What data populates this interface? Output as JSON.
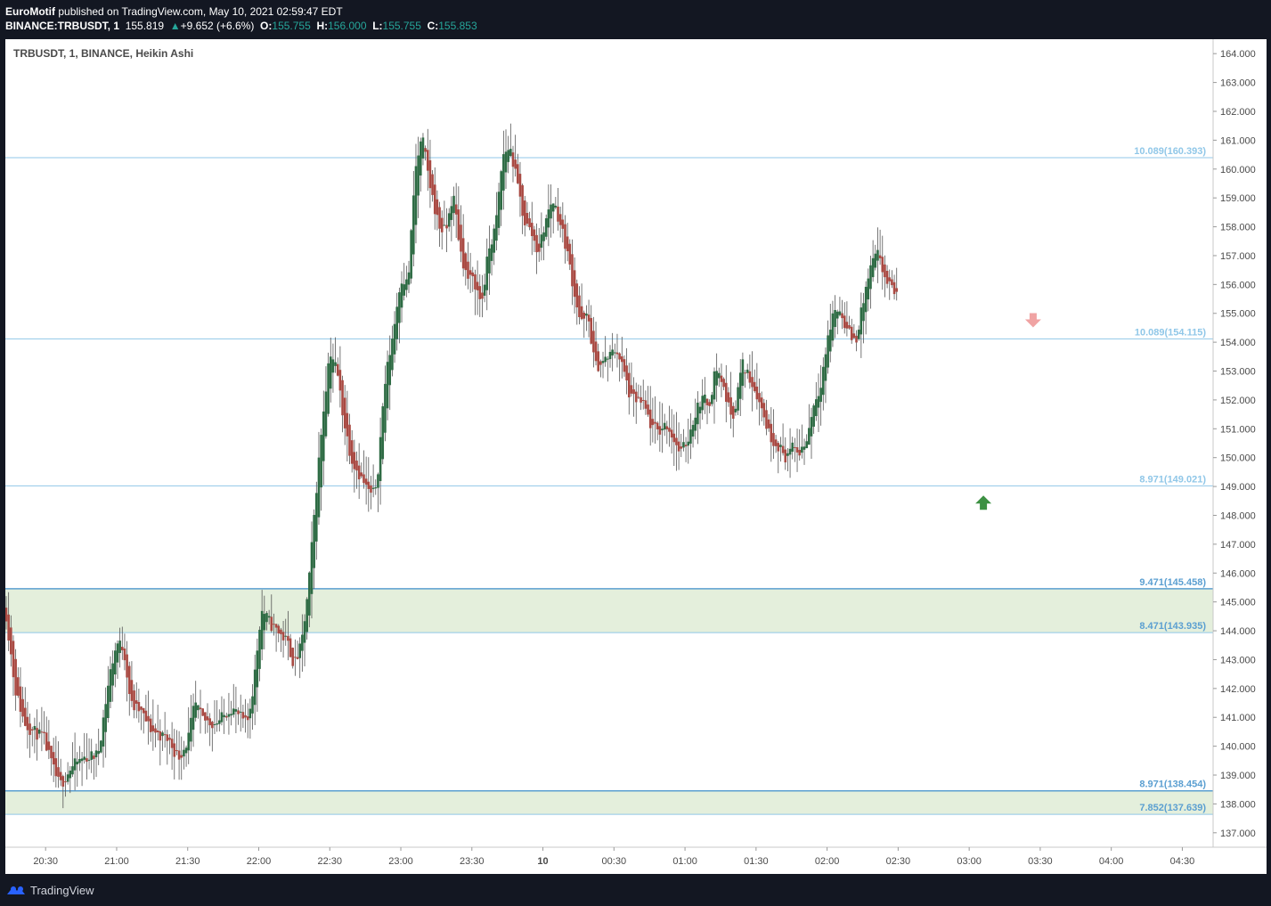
{
  "header": {
    "author": "EuroMotif",
    "published_text": "published on TradingView.com, May 10, 2021 02:59:47 EDT",
    "symbol_line": "BINANCE:TRBUSDT, 1",
    "last_price": "155.819",
    "change_arrow": "▲",
    "change": "+9.652 (+6.6%)",
    "o_label": "O:",
    "o_value": "155.755",
    "h_label": "H:",
    "h_value": "156.000",
    "l_label": "L:",
    "l_value": "155.755",
    "c_label": "C:",
    "c_value": "155.853"
  },
  "chart_title": "TRBUSDT, 1, BINANCE, Heikin Ashi",
  "footer": {
    "brand": "TradingView",
    "logo_icon": "tradingview-logo-icon"
  },
  "colors": {
    "up": "#2e6b44",
    "down": "#a94a43",
    "wick": "#555555",
    "level_line": "#90c7e8",
    "level_text": "#90c7e8",
    "zone_fill": "#e4efdc",
    "zone_line": "#5b9fd1",
    "arrow_down": "#f0a3a3",
    "arrow_up": "#3d9143"
  },
  "chart_data": {
    "type": "candlestick",
    "title": "TRBUSDT, 1, BINANCE, Heikin Ashi",
    "xlabel": "",
    "ylabel": "",
    "ylim": [
      136.5,
      164.5
    ],
    "x_range": [
      "20:13",
      "04:43"
    ],
    "y_ticks": [
      "137.000",
      "138.000",
      "139.000",
      "140.000",
      "141.000",
      "142.000",
      "143.000",
      "144.000",
      "145.000",
      "146.000",
      "147.000",
      "148.000",
      "149.000",
      "150.000",
      "151.000",
      "152.000",
      "153.000",
      "154.000",
      "155.000",
      "156.000",
      "157.000",
      "158.000",
      "159.000",
      "160.000",
      "161.000",
      "162.000",
      "163.000",
      "164.000"
    ],
    "x_ticks": [
      {
        "label": "20:30",
        "t": "20:30"
      },
      {
        "label": "21:00",
        "t": "21:00"
      },
      {
        "label": "21:30",
        "t": "21:30"
      },
      {
        "label": "22:00",
        "t": "22:00"
      },
      {
        "label": "22:30",
        "t": "22:30"
      },
      {
        "label": "23:00",
        "t": "23:00"
      },
      {
        "label": "23:30",
        "t": "23:30"
      },
      {
        "label": "10",
        "t": "00:00"
      },
      {
        "label": "00:30",
        "t": "00:30"
      },
      {
        "label": "01:00",
        "t": "01:00"
      },
      {
        "label": "01:30",
        "t": "01:30"
      },
      {
        "label": "02:00",
        "t": "02:00"
      },
      {
        "label": "02:30",
        "t": "02:30"
      },
      {
        "label": "03:00",
        "t": "03:00"
      },
      {
        "label": "03:30",
        "t": "03:30"
      },
      {
        "label": "04:00",
        "t": "04:00"
      },
      {
        "label": "04:30",
        "t": "04:30"
      }
    ],
    "price_path": [
      [
        "20:13",
        144.8
      ],
      [
        "20:17",
        142.0
      ],
      [
        "20:21",
        140.8
      ],
      [
        "20:25",
        140.5
      ],
      [
        "20:29",
        140.3
      ],
      [
        "20:33",
        139.2
      ],
      [
        "20:36",
        138.6
      ],
      [
        "20:40",
        139.2
      ],
      [
        "20:46",
        139.6
      ],
      [
        "20:52",
        139.7
      ],
      [
        "20:57",
        142.5
      ],
      [
        "21:00",
        143.6
      ],
      [
        "21:03",
        143.4
      ],
      [
        "21:06",
        141.4
      ],
      [
        "21:10",
        141.2
      ],
      [
        "21:14",
        140.6
      ],
      [
        "21:18",
        140.4
      ],
      [
        "21:22",
        140.2
      ],
      [
        "21:26",
        139.6
      ],
      [
        "21:30",
        140.2
      ],
      [
        "21:33",
        141.5
      ],
      [
        "21:36",
        140.9
      ],
      [
        "21:41",
        140.8
      ],
      [
        "21:45",
        141.0
      ],
      [
        "21:48",
        141.4
      ],
      [
        "21:52",
        141.0
      ],
      [
        "21:55",
        140.7
      ],
      [
        "21:58",
        142.3
      ],
      [
        "22:01",
        144.8
      ],
      [
        "22:05",
        144.2
      ],
      [
        "22:09",
        143.9
      ],
      [
        "22:12",
        143.6
      ],
      [
        "22:15",
        142.8
      ],
      [
        "22:18",
        143.5
      ],
      [
        "22:21",
        145.5
      ],
      [
        "22:24",
        148.7
      ],
      [
        "22:27",
        151.5
      ],
      [
        "22:30",
        153.8
      ],
      [
        "22:33",
        153.0
      ],
      [
        "22:36",
        151.2
      ],
      [
        "22:39",
        150.0
      ],
      [
        "22:42",
        149.5
      ],
      [
        "22:45",
        149.0
      ],
      [
        "22:48",
        148.6
      ],
      [
        "22:50",
        149.3
      ],
      [
        "22:53",
        152.5
      ],
      [
        "22:57",
        154.5
      ],
      [
        "23:00",
        156.3
      ],
      [
        "23:03",
        156.0
      ],
      [
        "23:06",
        160.0
      ],
      [
        "23:09",
        161.1
      ],
      [
        "23:12",
        159.5
      ],
      [
        "23:16",
        158.0
      ],
      [
        "23:19",
        157.8
      ],
      [
        "23:22",
        159.2
      ],
      [
        "23:25",
        157.2
      ],
      [
        "23:28",
        156.2
      ],
      [
        "23:31",
        156.1
      ],
      [
        "23:34",
        155.3
      ],
      [
        "23:37",
        157.2
      ],
      [
        "23:40",
        158.0
      ],
      [
        "23:43",
        160.5
      ],
      [
        "23:46",
        160.8
      ],
      [
        "23:49",
        159.5
      ],
      [
        "23:52",
        158.2
      ],
      [
        "23:55",
        157.8
      ],
      [
        "23:58",
        157.1
      ],
      [
        "24:01",
        158.2
      ],
      [
        "24:04",
        159.0
      ],
      [
        "24:07",
        158.2
      ],
      [
        "24:10",
        157.2
      ],
      [
        "24:13",
        155.8
      ],
      [
        "24:16",
        154.6
      ],
      [
        "24:19",
        154.9
      ],
      [
        "24:22",
        153.1
      ],
      [
        "24:25",
        153.3
      ],
      [
        "24:28",
        153.5
      ],
      [
        "24:31",
        153.8
      ],
      [
        "24:34",
        153.0
      ],
      [
        "24:37",
        152.0
      ],
      [
        "24:40",
        152.0
      ],
      [
        "24:43",
        151.7
      ],
      [
        "24:46",
        151.0
      ],
      [
        "24:49",
        150.9
      ],
      [
        "24:52",
        151.2
      ],
      [
        "24:55",
        150.7
      ],
      [
        "24:58",
        150.1
      ],
      [
        "25:01",
        150.6
      ],
      [
        "25:04",
        151.5
      ],
      [
        "25:07",
        152.1
      ],
      [
        "25:10",
        151.8
      ],
      [
        "25:13",
        153.2
      ],
      [
        "25:16",
        152.5
      ],
      [
        "25:19",
        151.5
      ],
      [
        "25:21",
        151.6
      ],
      [
        "25:24",
        153.3
      ],
      [
        "25:27",
        152.8
      ],
      [
        "25:30",
        152.3
      ],
      [
        "25:33",
        151.5
      ],
      [
        "25:36",
        150.7
      ],
      [
        "25:39",
        150.5
      ],
      [
        "25:42",
        150.0
      ],
      [
        "25:45",
        150.3
      ],
      [
        "25:48",
        150.2
      ],
      [
        "25:51",
        150.5
      ],
      [
        "25:54",
        151.8
      ],
      [
        "25:57",
        152.5
      ],
      [
        "26:00",
        154.0
      ],
      [
        "26:03",
        155.2
      ],
      [
        "26:06",
        155.0
      ],
      [
        "26:09",
        154.3
      ],
      [
        "26:12",
        154.0
      ],
      [
        "26:15",
        155.3
      ],
      [
        "26:18",
        156.5
      ],
      [
        "26:21",
        157.1
      ],
      [
        "26:24",
        156.3
      ],
      [
        "26:27",
        155.8
      ],
      [
        "26:30",
        155.8
      ]
    ],
    "levels": [
      {
        "label": "10.089(160.393)",
        "price": 160.393
      },
      {
        "label": "10.089(154.115)",
        "price": 154.115
      },
      {
        "label": "8.971(149.021)",
        "price": 149.021
      }
    ],
    "zones": [
      {
        "top_label": "9.471(145.458)",
        "top": 145.458,
        "bottom_label": "8.471(143.935)",
        "bottom": 143.935
      },
      {
        "top_label": "8.971(138.454)",
        "top": 138.454,
        "bottom_label": "7.852(137.639)",
        "bottom": 137.639
      }
    ],
    "arrows": [
      {
        "direction": "down",
        "t": "03:27",
        "price": 154.7
      },
      {
        "direction": "up",
        "t": "03:06",
        "price": 148.5
      }
    ],
    "grid": false,
    "legend": "none"
  }
}
